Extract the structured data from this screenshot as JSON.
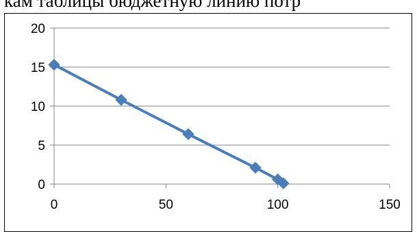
{
  "document": {
    "text_fragment": "кам таблицы бюджетную линию потр"
  },
  "colors": {
    "series": "#4a7ebb",
    "grid": "#868686",
    "text": "#000000"
  },
  "chart_data": {
    "type": "scatter",
    "subtype": "scatter-lines-markers",
    "title": "",
    "xlabel": "",
    "ylabel": "",
    "xlim": [
      0,
      150
    ],
    "ylim": [
      0,
      20
    ],
    "x_ticks": [
      0,
      50,
      100,
      150
    ],
    "y_ticks": [
      0,
      5,
      10,
      15,
      20
    ],
    "grid": "horizontal",
    "legend": "none",
    "marker": "diamond",
    "series": [
      {
        "x": [
          0,
          30,
          60,
          90,
          100,
          102.5
        ],
        "y": [
          15.3,
          10.8,
          6.4,
          2.1,
          0.6,
          0.1
        ]
      }
    ]
  }
}
